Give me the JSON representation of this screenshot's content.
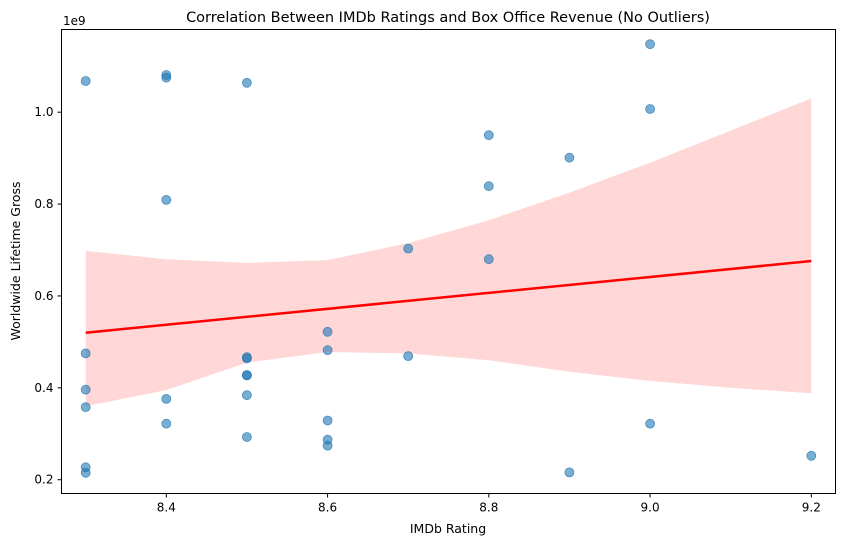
{
  "chart_data": {
    "type": "scatter",
    "title": "Correlation Between IMDb Ratings and Box Office Revenue (No Outliers)",
    "xlabel": "IMDb Rating",
    "ylabel": "Worldwide Lifetime Gross",
    "y_offset_label": "1e9",
    "xlim": [
      8.27,
      9.23
    ],
    "ylim": [
      0.17,
      1.18
    ],
    "x_ticks": [
      8.4,
      8.6,
      8.8,
      9.0,
      9.2
    ],
    "x_tick_labels": [
      "8.4",
      "8.6",
      "8.8",
      "9.0",
      "9.2"
    ],
    "y_ticks": [
      0.2,
      0.4,
      0.6,
      0.8,
      1.0
    ],
    "y_tick_labels": [
      "0.2",
      "0.4",
      "0.6",
      "0.8",
      "1.0"
    ],
    "grid": false,
    "points": [
      {
        "x": 8.3,
        "y": 1.068
      },
      {
        "x": 8.3,
        "y": 0.475
      },
      {
        "x": 8.3,
        "y": 0.396
      },
      {
        "x": 8.3,
        "y": 0.358
      },
      {
        "x": 8.3,
        "y": 0.227
      },
      {
        "x": 8.3,
        "y": 0.215
      },
      {
        "x": 8.4,
        "y": 1.081
      },
      {
        "x": 8.4,
        "y": 1.075
      },
      {
        "x": 8.4,
        "y": 0.809
      },
      {
        "x": 8.4,
        "y": 0.376
      },
      {
        "x": 8.4,
        "y": 0.322
      },
      {
        "x": 8.5,
        "y": 1.064
      },
      {
        "x": 8.5,
        "y": 0.467
      },
      {
        "x": 8.5,
        "y": 0.464
      },
      {
        "x": 8.5,
        "y": 0.428
      },
      {
        "x": 8.5,
        "y": 0.427
      },
      {
        "x": 8.5,
        "y": 0.384
      },
      {
        "x": 8.5,
        "y": 0.293
      },
      {
        "x": 8.6,
        "y": 0.522
      },
      {
        "x": 8.6,
        "y": 0.482
      },
      {
        "x": 8.6,
        "y": 0.329
      },
      {
        "x": 8.6,
        "y": 0.287
      },
      {
        "x": 8.6,
        "y": 0.274
      },
      {
        "x": 8.7,
        "y": 0.703
      },
      {
        "x": 8.7,
        "y": 0.469
      },
      {
        "x": 8.8,
        "y": 0.95
      },
      {
        "x": 8.8,
        "y": 0.839
      },
      {
        "x": 8.8,
        "y": 0.68
      },
      {
        "x": 8.9,
        "y": 0.901
      },
      {
        "x": 8.9,
        "y": 0.216
      },
      {
        "x": 9.0,
        "y": 1.148
      },
      {
        "x": 9.0,
        "y": 1.007
      },
      {
        "x": 9.0,
        "y": 0.322
      },
      {
        "x": 9.2,
        "y": 0.252
      }
    ],
    "regression": {
      "x": [
        8.3,
        9.2
      ],
      "y": [
        0.52,
        0.676
      ]
    },
    "confidence_band": {
      "x": [
        8.3,
        8.4,
        8.5,
        8.6,
        8.7,
        8.8,
        8.9,
        9.0,
        9.1,
        9.2
      ],
      "upper": [
        0.698,
        0.68,
        0.672,
        0.678,
        0.715,
        0.765,
        0.825,
        0.89,
        0.96,
        1.03
      ],
      "lower": [
        0.36,
        0.395,
        0.455,
        0.478,
        0.475,
        0.46,
        0.435,
        0.415,
        0.4,
        0.388
      ]
    },
    "colors": {
      "points": "#1f77b4",
      "regression_line": "#ff0000",
      "band": "#ffd7d7",
      "axes": "#000000"
    }
  }
}
